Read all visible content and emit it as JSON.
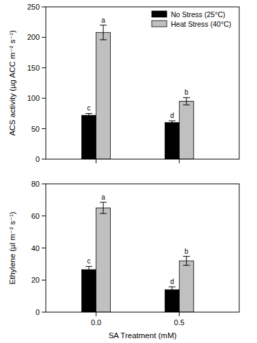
{
  "chart_data": [
    {
      "type": "bar",
      "y_label": "ACS activity (µg ACC m⁻² s⁻¹)",
      "categories": [
        null,
        null
      ],
      "series": [
        {
          "name": "No Stress (25°C)",
          "color": "#000000",
          "values": [
            72,
            60
          ],
          "errors": [
            3,
            3
          ],
          "letters": [
            "c",
            "d"
          ]
        },
        {
          "name": "Heat Stress (40°C)",
          "color": "#c0c0c0",
          "values": [
            208,
            95
          ],
          "errors": [
            12,
            6
          ],
          "letters": [
            "a",
            "b"
          ]
        }
      ],
      "ylim": [
        0,
        250
      ],
      "yticks": [
        0,
        50,
        100,
        150,
        200,
        250
      ],
      "grid": false,
      "legend": "upper right",
      "tick_labels": "y"
    },
    {
      "type": "bar",
      "y_label": "Ethylene (µl m⁻² s⁻¹)",
      "x_label": "SA Treatment (mM)",
      "categories": [
        "0.0",
        "0.5"
      ],
      "series": [
        {
          "color": "#000000",
          "values": [
            26.5,
            14
          ],
          "errors": [
            2,
            1.8
          ],
          "letters": [
            "c",
            "d"
          ]
        },
        {
          "color": "#c0c0c0",
          "values": [
            65,
            32
          ],
          "errors": [
            3.5,
            2.8
          ],
          "letters": [
            "a",
            "b"
          ]
        }
      ],
      "ylim": [
        0,
        80
      ],
      "yticks": [
        0,
        20,
        40,
        60,
        80
      ],
      "grid": false,
      "tick_labels": true
    }
  ]
}
